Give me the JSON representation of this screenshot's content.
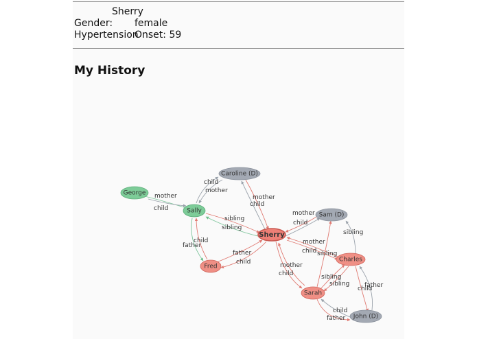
{
  "profile": {
    "name": "Sherry",
    "gender_label": "Gender:",
    "gender_value": "female",
    "condition_label": "Hypertension",
    "onset_text": "Onset: 59"
  },
  "history": {
    "title": "My History"
  },
  "graph": {
    "colors": {
      "green": "#7dcc98",
      "red": "#ef8f85",
      "grey": "#a3a9b3",
      "sherry": "#ee7f76"
    },
    "nodes": [
      {
        "id": "george",
        "label": "George",
        "kind": "green"
      },
      {
        "id": "sally",
        "label": "Sally",
        "kind": "green"
      },
      {
        "id": "caroline",
        "label": "Caroline (D)",
        "kind": "grey"
      },
      {
        "id": "sherry",
        "label": "Sherry",
        "kind": "sherry"
      },
      {
        "id": "sam",
        "label": "Sam (D)",
        "kind": "grey"
      },
      {
        "id": "fred",
        "label": "Fred",
        "kind": "red"
      },
      {
        "id": "charles",
        "label": "Charles",
        "kind": "red"
      },
      {
        "id": "sarah",
        "label": "Sarah",
        "kind": "red"
      },
      {
        "id": "john",
        "label": "John (D)",
        "kind": "grey"
      }
    ],
    "edge_labels": [
      "mother",
      "child",
      "child",
      "mother",
      "mother",
      "child",
      "sibling",
      "sibling",
      "mother",
      "child",
      "child",
      "father",
      "father",
      "child",
      "mother",
      "child",
      "sibling",
      "mother",
      "child",
      "sibling",
      "sibling",
      "sibling",
      "child",
      "father",
      "father",
      "child"
    ]
  }
}
